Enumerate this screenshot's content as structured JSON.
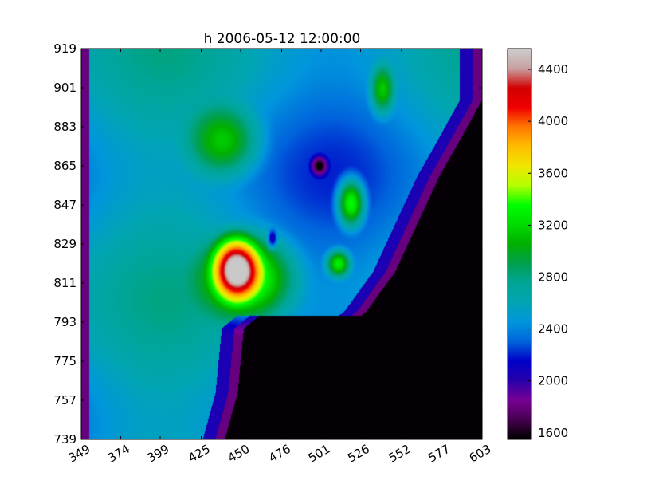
{
  "chart_data": {
    "type": "heatmap",
    "title": "h 2006-05-12 12:00:00",
    "xlabel": "",
    "ylabel": "",
    "x_ticks": [
      "349",
      "374",
      "399",
      "425",
      "450",
      "476",
      "501",
      "526",
      "552",
      "577",
      "603"
    ],
    "y_ticks": [
      "919",
      "901",
      "883",
      "865",
      "847",
      "829",
      "811",
      "793",
      "775",
      "757",
      "739"
    ],
    "xlim": [
      349,
      603
    ],
    "ylim": [
      739,
      919
    ],
    "colorbar": {
      "ticks": [
        "4400",
        "4000",
        "3600",
        "3200",
        "2800",
        "2400",
        "2000",
        "1600"
      ],
      "range": [
        1550,
        4560
      ],
      "colormap": "nipy_spectral"
    },
    "grid": false,
    "field_features": {
      "background_level": 2500,
      "saturated_over_range_color": "#c8c8c8",
      "masked_region_color": "#000000"
    }
  }
}
